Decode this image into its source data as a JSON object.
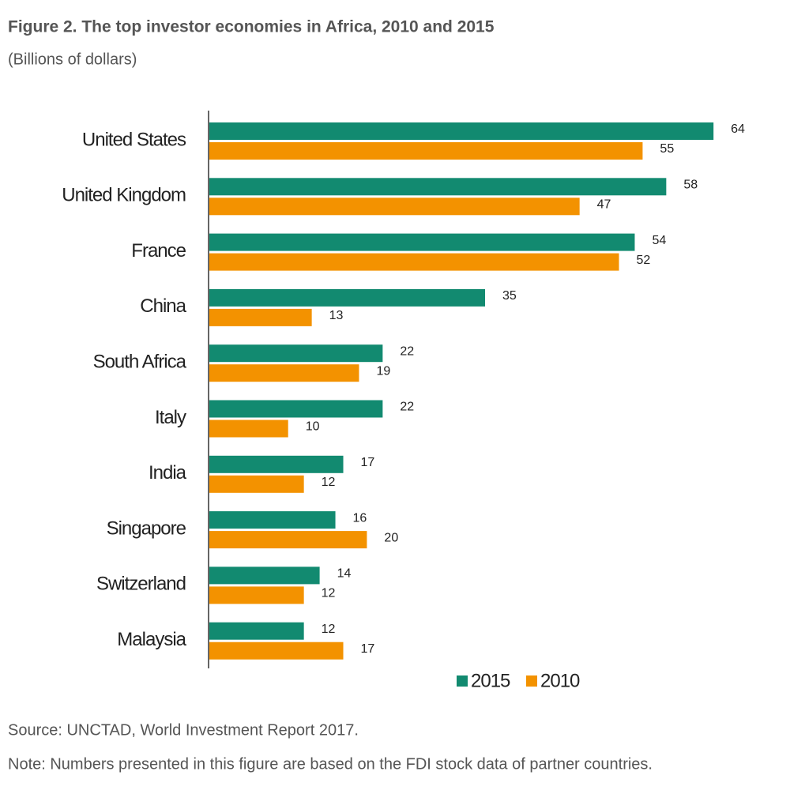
{
  "chart_data": {
    "type": "grouped-hbar",
    "title": "Figure 2. The top investor economies in Africa, 2010 and 2015",
    "subtitle": "(Billions of dollars)",
    "categories": [
      "United States",
      "United Kingdom",
      "France",
      "China",
      "South Africa",
      "Italy",
      "India",
      "Singapore",
      "Switzerland",
      "Malaysia"
    ],
    "series": [
      {
        "name": "2015",
        "color": "#128a70",
        "values": [
          64,
          58,
          54,
          35,
          22,
          22,
          17,
          16,
          14,
          12
        ]
      },
      {
        "name": "2010",
        "color": "#f39200",
        "values": [
          55,
          47,
          52,
          13,
          19,
          10,
          12,
          20,
          12,
          17
        ]
      }
    ],
    "xlim": [
      0,
      70
    ],
    "source": "Source: UNCTAD, World Investment Report 2017.",
    "note": "Note: Numbers presented in this figure are based on the FDI stock data of partner countries."
  }
}
